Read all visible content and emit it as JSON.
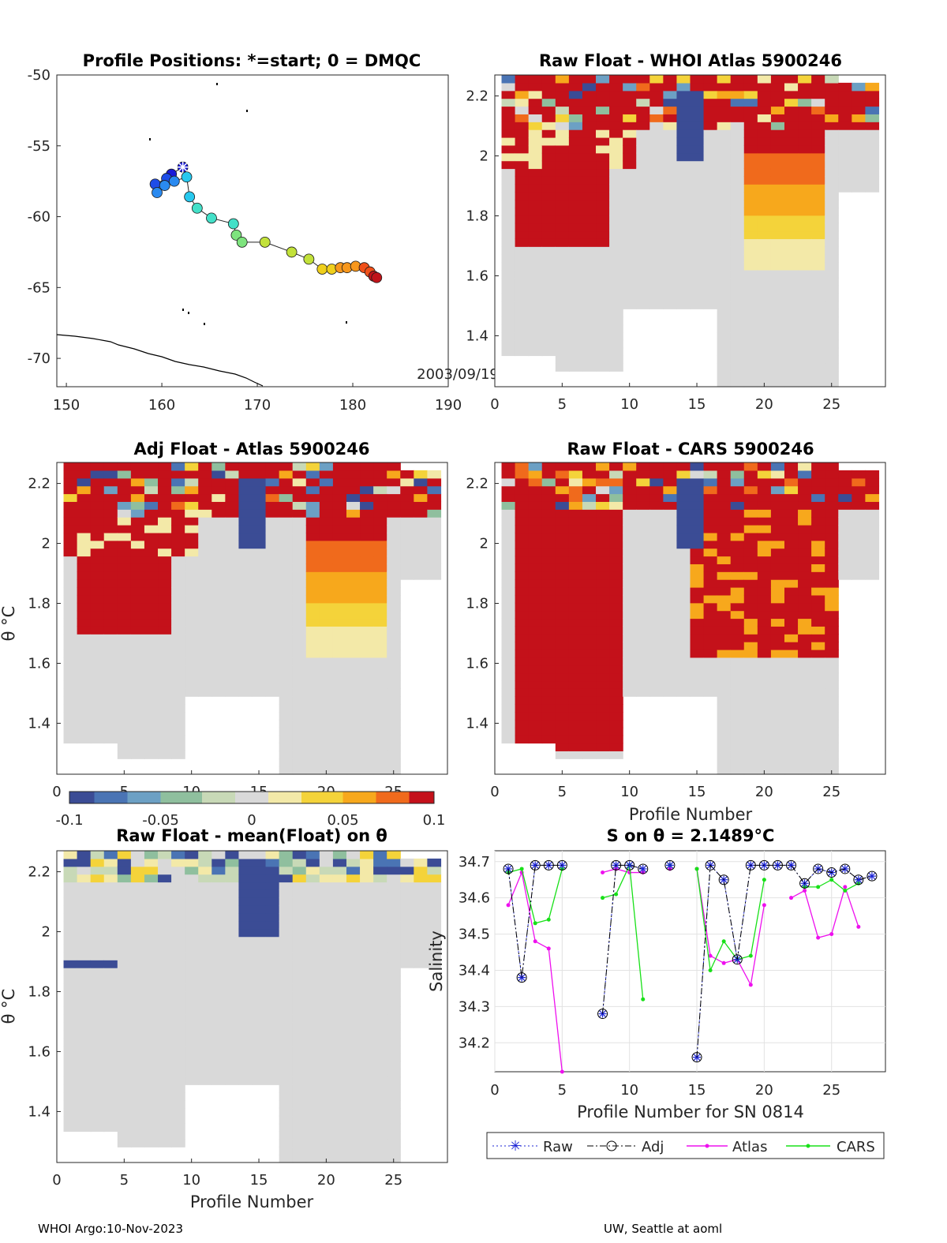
{
  "colors": {
    "cmap": [
      "#3b4c95",
      "#4a74b4",
      "#6ca0c4",
      "#8fbf9e",
      "#c8d9b7",
      "#d9d9d9",
      "#f3e9a8",
      "#f4d33a",
      "#f7a81c",
      "#f06a1c",
      "#c4111a"
    ],
    "raw": "#1d25d6",
    "adj": "#000000",
    "atlas": "#ee10ee",
    "cars": "#18e018",
    "missing": "#ffffff",
    "neutral": "#d9d9d9"
  },
  "panels": {
    "map": {
      "title": "Profile Positions: *=start; 0 = DMQC",
      "date_label": "2003/09/19",
      "xticks": [
        "150",
        "160",
        "170",
        "180",
        "190"
      ],
      "yticks": [
        "-50",
        "-55",
        "-60",
        "-65",
        "-70"
      ],
      "xlim": [
        149,
        190
      ],
      "ylim": [
        -72,
        -50
      ],
      "track": [
        {
          "lon": 162.2,
          "lat": -56.5
        },
        {
          "lon": 161.0,
          "lat": -57.0
        },
        {
          "lon": 160.5,
          "lat": -57.3
        },
        {
          "lon": 159.3,
          "lat": -57.7
        },
        {
          "lon": 159.5,
          "lat": -58.3
        },
        {
          "lon": 160.3,
          "lat": -57.8
        },
        {
          "lon": 161.3,
          "lat": -57.5
        },
        {
          "lon": 162.6,
          "lat": -57.2
        },
        {
          "lon": 162.9,
          "lat": -58.6
        },
        {
          "lon": 163.7,
          "lat": -59.4
        },
        {
          "lon": 165.2,
          "lat": -60.1
        },
        {
          "lon": 167.5,
          "lat": -60.5
        },
        {
          "lon": 167.8,
          "lat": -61.3
        },
        {
          "lon": 168.4,
          "lat": -61.8
        },
        {
          "lon": 170.8,
          "lat": -61.8
        },
        {
          "lon": 173.6,
          "lat": -62.5
        },
        {
          "lon": 175.4,
          "lat": -63.0
        },
        {
          "lon": 176.8,
          "lat": -63.7
        },
        {
          "lon": 177.8,
          "lat": -63.7
        },
        {
          "lon": 178.7,
          "lat": -63.6
        },
        {
          "lon": 179.4,
          "lat": -63.6
        },
        {
          "lon": 180.3,
          "lat": -63.5
        },
        {
          "lon": 181.2,
          "lat": -63.6
        },
        {
          "lon": 181.8,
          "lat": -63.9
        },
        {
          "lon": 182.2,
          "lat": -64.2
        },
        {
          "lon": 182.5,
          "lat": -64.3
        }
      ]
    },
    "whoi": {
      "title": "Raw Float - WHOI Atlas  5900246"
    },
    "adj": {
      "title": "Adj Float - Atlas  5900246",
      "ylabel": "θ °C"
    },
    "cars": {
      "title": "Raw Float - CARS  5900246",
      "xlabel": "Profile Number"
    },
    "mean": {
      "title": "Raw Float - mean(Float) on θ",
      "ylabel": "θ °C",
      "xlabel": "Profile Number"
    },
    "section_axes": {
      "yticks": [
        "2.2",
        "2",
        "1.8",
        "1.6",
        "1.4"
      ],
      "xticks": [
        "0",
        "5",
        "10",
        "15",
        "20",
        "25"
      ],
      "xlim": [
        0,
        29
      ],
      "ylim": [
        1.23,
        2.27
      ]
    },
    "colorbar": {
      "ticks": [
        "-0.1",
        "-0.05",
        "0",
        "0.05",
        "0.1"
      ],
      "range": [
        -0.1,
        0.1
      ]
    }
  },
  "chart_data": {
    "type": "line",
    "title": "S on θ = 2.1489°C",
    "xlabel": "Profile Number for SN 0814",
    "ylabel": "Salinity",
    "xlim": [
      0,
      29
    ],
    "ylim": [
      34.12,
      34.73
    ],
    "xticks": [
      "0",
      "5",
      "10",
      "15",
      "20",
      "25"
    ],
    "yticks": [
      "34.7",
      "34.6",
      "34.5",
      "34.4",
      "34.3",
      "34.2"
    ],
    "x": [
      1,
      2,
      3,
      4,
      5,
      6,
      7,
      8,
      9,
      10,
      11,
      12,
      13,
      14,
      15,
      16,
      17,
      18,
      19,
      20,
      21,
      22,
      23,
      24,
      25,
      26,
      27,
      28
    ],
    "series": [
      {
        "name": "Raw",
        "values": [
          34.68,
          34.38,
          34.69,
          34.69,
          34.69,
          null,
          null,
          34.28,
          34.69,
          34.69,
          34.68,
          null,
          34.69,
          null,
          34.16,
          34.69,
          34.65,
          34.43,
          34.69,
          34.69,
          34.69,
          34.69,
          34.64,
          34.68,
          34.67,
          34.68,
          34.65,
          34.66
        ]
      },
      {
        "name": "Adj",
        "values": [
          34.68,
          34.38,
          34.69,
          34.69,
          34.69,
          null,
          null,
          34.28,
          34.69,
          34.69,
          34.68,
          null,
          34.69,
          null,
          34.16,
          34.69,
          34.65,
          34.43,
          34.69,
          34.69,
          34.69,
          34.69,
          34.64,
          34.68,
          34.67,
          34.68,
          34.65,
          34.66
        ]
      },
      {
        "name": "Atlas",
        "values": [
          34.58,
          34.67,
          34.48,
          34.46,
          34.12,
          null,
          null,
          34.67,
          34.68,
          34.67,
          34.67,
          null,
          34.68,
          null,
          34.68,
          34.44,
          34.42,
          34.43,
          34.36,
          34.58,
          null,
          34.6,
          34.62,
          34.49,
          34.5,
          34.63,
          34.52,
          null
        ]
      },
      {
        "name": "CARS",
        "values": [
          34.67,
          34.68,
          34.53,
          34.54,
          34.68,
          null,
          null,
          34.6,
          34.61,
          34.69,
          34.32,
          null,
          34.69,
          null,
          34.68,
          34.4,
          34.48,
          34.43,
          34.44,
          34.65,
          null,
          null,
          34.63,
          34.63,
          34.65,
          34.62,
          34.64,
          null
        ]
      }
    ],
    "legend": [
      "Raw",
      "Adj",
      "Atlas",
      "CARS"
    ]
  },
  "footer": {
    "left": "WHOI Argo:10-Nov-2023",
    "right": "UW, Seattle at aoml"
  }
}
